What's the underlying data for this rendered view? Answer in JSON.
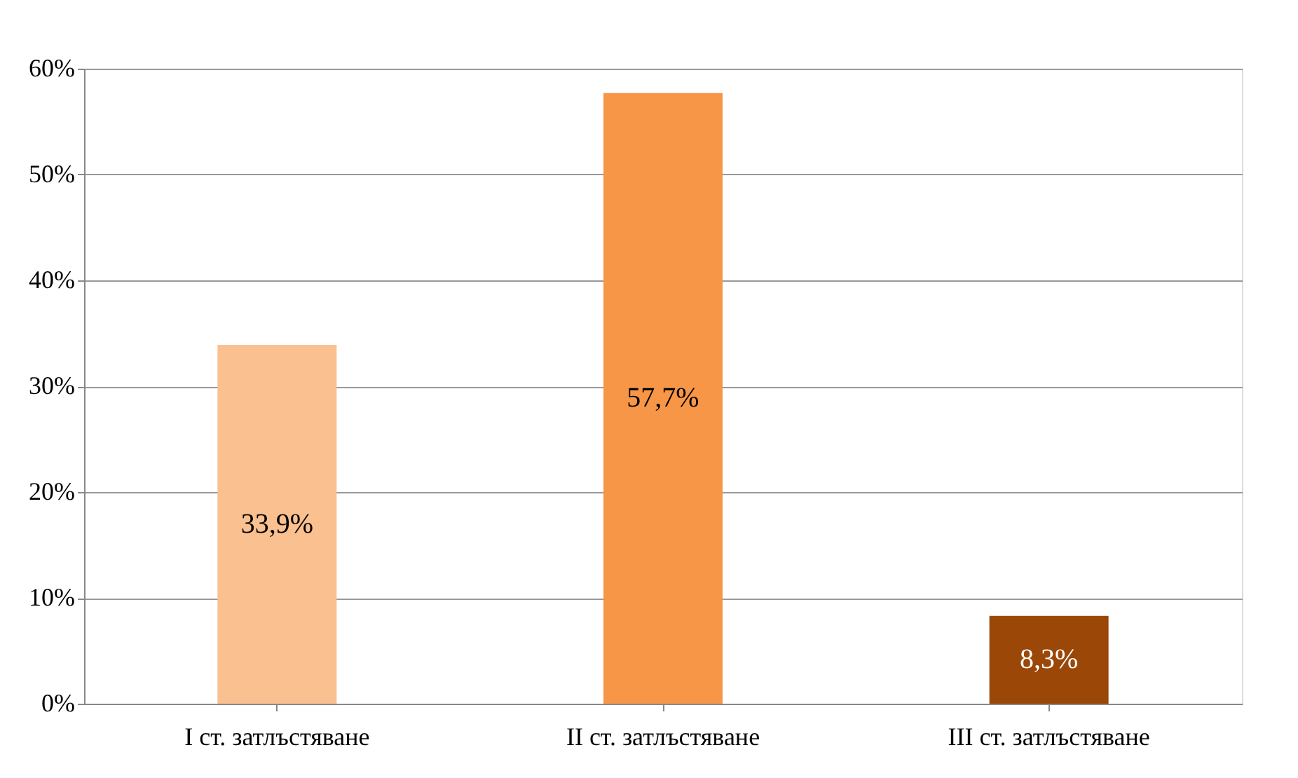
{
  "chart_data": {
    "type": "bar",
    "categories": [
      "I ст. затлъстяване",
      "II ст. затлъстяване",
      "III ст. затлъстяване"
    ],
    "values": [
      33.9,
      57.7,
      8.3
    ],
    "colors": [
      "#fac090",
      "#f79646",
      "#9a4708"
    ],
    "value_labels": [
      "33,9%",
      "57,7%",
      "8,3%"
    ],
    "ylim": [
      0,
      60
    ],
    "yticks": [
      {
        "value": 0,
        "label": "0%"
      },
      {
        "value": 10,
        "label": "10%"
      },
      {
        "value": 20,
        "label": "20%"
      },
      {
        "value": 30,
        "label": "30%"
      },
      {
        "value": 40,
        "label": "40%"
      },
      {
        "value": 50,
        "label": "50%"
      },
      {
        "value": 60,
        "label": "60%"
      }
    ],
    "grid": "y"
  }
}
